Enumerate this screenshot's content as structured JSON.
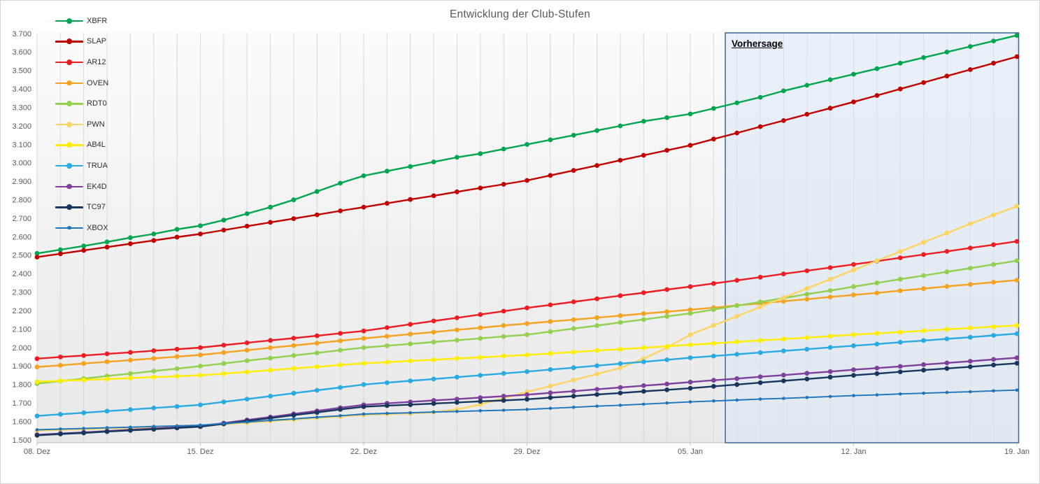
{
  "title": "Entwicklung der Club-Stufen",
  "forecast": {
    "label": "Vorhersage",
    "start_day": 29.5,
    "end_day": 42,
    "fill_color": "#dce7f5",
    "border_color": "#2e5f8f"
  },
  "axes": {
    "y_min": 1500,
    "y_max": 3700,
    "y_step": 100,
    "y_tick_labels": [
      "1.500",
      "1.600",
      "1.700",
      "1.800",
      "1.900",
      "2.000",
      "2.100",
      "2.200",
      "2.300",
      "2.400",
      "2.500",
      "2.600",
      "2.700",
      "2.800",
      "2.900",
      "3.000",
      "3.100",
      "3.200",
      "3.300",
      "3.400",
      "3.500",
      "3.600",
      "3.700"
    ],
    "x_tick_labels": [
      "08. Dez",
      "15. Dez",
      "22. Dez",
      "29. Dez",
      "05. Jan",
      "12. Jan",
      "19. Jan"
    ],
    "x_tick_days": [
      0,
      7,
      14,
      21,
      28,
      35,
      42
    ],
    "total_days": 42,
    "label_color": "#595959",
    "gridline_color": "#d9d9d9",
    "axisline_color": "#bfbfbf"
  },
  "chart_data": {
    "type": "line",
    "x_unit": "day (daily points, 08. Dez – 19. Jan)",
    "grid": "vertical-daily",
    "legend_position": "top-left-vertical",
    "series": [
      {
        "name": "XBFR",
        "color": "#00a550",
        "marker_radius": 3.4,
        "line_width": 2.4,
        "values": [
          2510,
          2530,
          2550,
          2572,
          2595,
          2615,
          2640,
          2660,
          2690,
          2725,
          2760,
          2800,
          2845,
          2890,
          2930,
          2955,
          2980,
          3005,
          3030,
          3050,
          3075,
          3100,
          3125,
          3150,
          3175,
          3200,
          3225,
          3245,
          3265,
          3295,
          3325,
          3355,
          3390,
          3420,
          3450,
          3480,
          3510,
          3540,
          3570,
          3600,
          3630,
          3660,
          3690
        ]
      },
      {
        "name": "SLAP",
        "color": "#c00000",
        "marker_radius": 3.4,
        "line_width": 2.4,
        "values": [
          2490,
          2508,
          2526,
          2544,
          2562,
          2580,
          2598,
          2615,
          2636,
          2657,
          2678,
          2698,
          2719,
          2740,
          2760,
          2781,
          2802,
          2822,
          2843,
          2864,
          2884,
          2905,
          2932,
          2959,
          2986,
          3014,
          3041,
          3068,
          3095,
          3129,
          3162,
          3196,
          3229,
          3263,
          3296,
          3330,
          3365,
          3400,
          3435,
          3470,
          3505,
          3540,
          3575
        ]
      },
      {
        "name": "AR12",
        "color": "#ee1d23",
        "marker_radius": 3.4,
        "line_width": 2.4,
        "values": [
          1940,
          1949,
          1957,
          1966,
          1974,
          1983,
          1991,
          2000,
          2013,
          2026,
          2039,
          2051,
          2064,
          2077,
          2090,
          2108,
          2126,
          2144,
          2161,
          2179,
          2197,
          2215,
          2231,
          2248,
          2264,
          2281,
          2297,
          2314,
          2330,
          2347,
          2364,
          2381,
          2399,
          2416,
          2433,
          2450,
          2468,
          2486,
          2504,
          2521,
          2539,
          2557,
          2575
        ]
      },
      {
        "name": "OVEN",
        "color": "#f4a21f",
        "marker_radius": 3.4,
        "line_width": 2.4,
        "values": [
          1895,
          1904,
          1914,
          1923,
          1932,
          1941,
          1951,
          1960,
          1973,
          1986,
          1999,
          2011,
          2024,
          2037,
          2050,
          2061,
          2073,
          2084,
          2096,
          2107,
          2119,
          2130,
          2141,
          2151,
          2162,
          2173,
          2184,
          2194,
          2205,
          2216,
          2228,
          2239,
          2251,
          2262,
          2274,
          2285,
          2296,
          2308,
          2319,
          2331,
          2342,
          2354,
          2365
        ]
      },
      {
        "name": "RDT0",
        "color": "#92d050",
        "marker_radius": 3.4,
        "line_width": 2.4,
        "values": [
          1805,
          1819,
          1832,
          1846,
          1859,
          1873,
          1886,
          1900,
          1914,
          1929,
          1943,
          1957,
          1971,
          1986,
          2000,
          2010,
          2020,
          2030,
          2040,
          2050,
          2060,
          2070,
          2086,
          2103,
          2119,
          2136,
          2152,
          2169,
          2185,
          2206,
          2227,
          2247,
          2268,
          2289,
          2309,
          2330,
          2350,
          2370,
          2390,
          2410,
          2430,
          2450,
          2470
        ]
      },
      {
        "name": "PWN",
        "color": "#fbd564",
        "marker_radius": 3.4,
        "line_width": 2.4,
        "values": [
          1551,
          1555,
          1558,
          1562,
          1565,
          1569,
          1572,
          1576,
          1585,
          1593,
          1602,
          1610,
          1619,
          1627,
          1636,
          1640,
          1643,
          1650,
          1665,
          1692,
          1726,
          1760,
          1792,
          1824,
          1857,
          1890,
          1940,
          2000,
          2070,
          2120,
          2170,
          2220,
          2270,
          2320,
          2370,
          2420,
          2470,
          2520,
          2570,
          2620,
          2670,
          2718,
          2765
        ]
      },
      {
        "name": "AB4L",
        "color": "#ffed00",
        "marker_radius": 3.4,
        "line_width": 2.4,
        "values": [
          1815,
          1820,
          1825,
          1830,
          1835,
          1840,
          1845,
          1850,
          1859,
          1868,
          1878,
          1887,
          1896,
          1906,
          1915,
          1921,
          1928,
          1934,
          1941,
          1947,
          1954,
          1960,
          1968,
          1976,
          1984,
          1991,
          1999,
          2007,
          2015,
          2023,
          2031,
          2039,
          2046,
          2054,
          2062,
          2070,
          2077,
          2084,
          2091,
          2099,
          2106,
          2113,
          2120
        ]
      },
      {
        "name": "TRUA",
        "color": "#29abe2",
        "marker_radius": 3.4,
        "line_width": 2.4,
        "values": [
          1630,
          1639,
          1647,
          1656,
          1664,
          1673,
          1681,
          1690,
          1706,
          1721,
          1737,
          1753,
          1769,
          1784,
          1800,
          1810,
          1820,
          1830,
          1840,
          1850,
          1860,
          1870,
          1881,
          1891,
          1902,
          1913,
          1923,
          1934,
          1945,
          1954,
          1964,
          1973,
          1982,
          1991,
          2001,
          2010,
          2019,
          2029,
          2038,
          2047,
          2056,
          2066,
          2075
        ]
      },
      {
        "name": "EK4D",
        "color": "#7e3f9d",
        "marker_radius": 3.4,
        "line_width": 2.4,
        "values": [
          1528,
          1535,
          1541,
          1548,
          1555,
          1562,
          1568,
          1575,
          1591,
          1608,
          1624,
          1641,
          1657,
          1674,
          1690,
          1698,
          1706,
          1714,
          1721,
          1729,
          1737,
          1745,
          1755,
          1764,
          1774,
          1784,
          1794,
          1803,
          1813,
          1823,
          1832,
          1842,
          1851,
          1861,
          1870,
          1880,
          1889,
          1898,
          1908,
          1917,
          1926,
          1936,
          1945
        ]
      },
      {
        "name": "TC97",
        "color": "#17375e",
        "marker_radius": 3.4,
        "line_width": 2.4,
        "values": [
          1525,
          1532,
          1538,
          1545,
          1552,
          1558,
          1565,
          1572,
          1587,
          1603,
          1618,
          1634,
          1649,
          1665,
          1680,
          1686,
          1691,
          1697,
          1703,
          1709,
          1714,
          1720,
          1729,
          1737,
          1746,
          1754,
          1763,
          1771,
          1780,
          1790,
          1800,
          1810,
          1820,
          1830,
          1840,
          1850,
          1859,
          1869,
          1878,
          1887,
          1896,
          1906,
          1915
        ]
      },
      {
        "name": "XBOX",
        "color": "#1c75bc",
        "marker_radius": 2.3,
        "line_width": 1.9,
        "values": [
          1555,
          1559,
          1562,
          1566,
          1569,
          1573,
          1576,
          1580,
          1589,
          1597,
          1606,
          1614,
          1623,
          1631,
          1640,
          1644,
          1647,
          1651,
          1654,
          1658,
          1661,
          1665,
          1671,
          1677,
          1683,
          1688,
          1694,
          1700,
          1706,
          1711,
          1716,
          1721,
          1725,
          1730,
          1735,
          1740,
          1744,
          1749,
          1753,
          1757,
          1761,
          1766,
          1770
        ]
      }
    ]
  }
}
